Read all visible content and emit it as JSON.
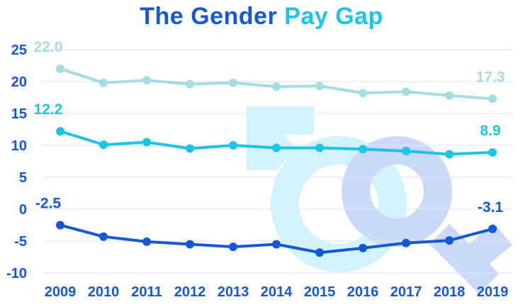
{
  "title_part1": "The Gender",
  "title_part2": "Pay Gap",
  "chart_data": {
    "type": "line",
    "title": "The Gender Pay Gap",
    "xlabel": "",
    "ylabel": "",
    "x": [
      "2009",
      "2010",
      "2011",
      "2012",
      "2013",
      "2014",
      "2015",
      "2016",
      "2017",
      "2018",
      "2019"
    ],
    "ylim": [
      -10,
      25
    ],
    "yticks": [
      25,
      20,
      15,
      10,
      5,
      0,
      -5,
      -10
    ],
    "grid": true,
    "legend": "none",
    "series": [
      {
        "color": "#a4dce3",
        "values": [
          22.0,
          19.8,
          20.2,
          19.6,
          19.8,
          19.2,
          19.3,
          18.2,
          18.4,
          17.8,
          17.3
        ],
        "labels": {
          "first": "22.0",
          "last": "17.3"
        }
      },
      {
        "color": "#1ec3e8",
        "values": [
          12.2,
          10.1,
          10.5,
          9.5,
          10.0,
          9.6,
          9.6,
          9.4,
          9.1,
          8.6,
          8.9
        ],
        "labels": {
          "first": "12.2",
          "last": "8.9"
        }
      },
      {
        "color": "#1458d6",
        "values": [
          -2.5,
          -4.3,
          -5.1,
          -5.5,
          -5.9,
          -5.5,
          -6.8,
          -6.1,
          -5.3,
          -4.9,
          -3.1
        ],
        "labels": {
          "first": "-2.5",
          "last": "-3.1"
        }
      }
    ]
  },
  "icon": "gender-symbols-icon"
}
